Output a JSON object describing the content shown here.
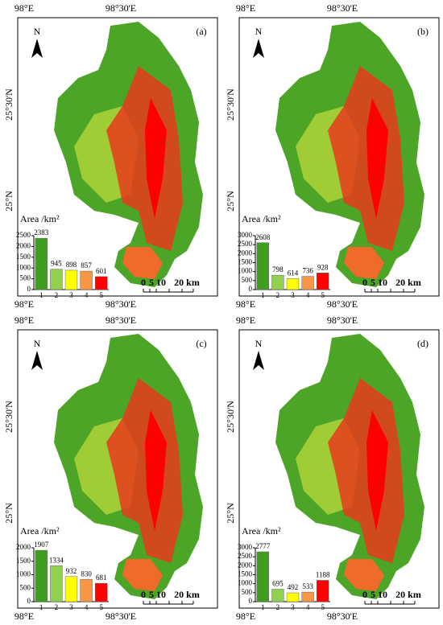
{
  "panels": [
    {
      "label": "(a)",
      "north": "N",
      "top_labels": [
        "98°E",
        "98°30'E"
      ],
      "left_labels": [
        "25°30'N",
        "25°N"
      ],
      "bottom_labels": [
        "98°E",
        "98°30'E"
      ],
      "scale_labels": [
        "0",
        "5",
        "10",
        "20 km"
      ]
    },
    {
      "label": "(b)",
      "north": "N",
      "top_labels": [
        "98°E",
        "98°30'E"
      ],
      "left_labels": [
        "25°30'N",
        "25°N"
      ],
      "bottom_labels": [
        "98°E",
        "98°30'E"
      ],
      "scale_labels": [
        "0",
        "5",
        "10",
        "20 km"
      ]
    },
    {
      "label": "(c)",
      "north": "N",
      "top_labels": [
        "98°E",
        "98°30'E"
      ],
      "left_labels": [
        "25°30'N",
        "25°N"
      ],
      "bottom_labels": [
        "98°E",
        "98°30'E"
      ],
      "scale_labels": [
        "0",
        "5",
        "10",
        "20 km"
      ]
    },
    {
      "label": "(d)",
      "north": "N",
      "top_labels": [
        "98°E",
        "98°30'E"
      ],
      "left_labels": [
        "25°30'N",
        "25°N"
      ],
      "bottom_labels": [
        "98°E",
        "98°30'E"
      ],
      "scale_labels": [
        "0",
        "5",
        "10",
        "20 km"
      ]
    }
  ],
  "chart_data": [
    {
      "type": "bar",
      "y_label": "Area /km²",
      "categories": [
        "1",
        "2",
        "3",
        "4",
        "5"
      ],
      "values": [
        2383,
        945,
        898,
        857,
        601
      ],
      "colors": [
        "#3f9e1f",
        "#92d050",
        "#ffff00",
        "#f79646",
        "#ff0000"
      ],
      "ylim": [
        0,
        2500
      ],
      "yticks": [
        0,
        500,
        1000,
        1500,
        2000,
        2500
      ]
    },
    {
      "type": "bar",
      "y_label": "Area /km²",
      "categories": [
        "1",
        "2",
        "3",
        "4",
        "5"
      ],
      "values": [
        2608,
        798,
        614,
        736,
        928
      ],
      "colors": [
        "#3f9e1f",
        "#92d050",
        "#ffff00",
        "#f79646",
        "#ff0000"
      ],
      "ylim": [
        0,
        3000
      ],
      "yticks": [
        0,
        500,
        1000,
        1500,
        2000,
        2500,
        3000
      ]
    },
    {
      "type": "bar",
      "y_label": "Area /km²",
      "categories": [
        "1",
        "2",
        "3",
        "4",
        "5"
      ],
      "values": [
        1907,
        1334,
        932,
        830,
        681
      ],
      "colors": [
        "#3f9e1f",
        "#92d050",
        "#ffff00",
        "#f79646",
        "#ff0000"
      ],
      "ylim": [
        0,
        2000
      ],
      "yticks": [
        0,
        500,
        1000,
        1500,
        2000
      ]
    },
    {
      "type": "bar",
      "y_label": "Area /km²",
      "categories": [
        "1",
        "2",
        "3",
        "4",
        "5"
      ],
      "values": [
        2777,
        695,
        492,
        533,
        1188
      ],
      "colors": [
        "#3f9e1f",
        "#92d050",
        "#ffff00",
        "#f79646",
        "#ff0000"
      ],
      "ylim": [
        0,
        3000
      ],
      "yticks": [
        0,
        500,
        1000,
        1500,
        2000,
        2500,
        3000
      ]
    }
  ]
}
